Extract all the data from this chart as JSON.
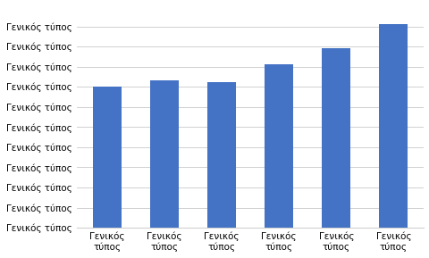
{
  "categories": [
    "Γενικός\nτύπος",
    "Γενικός\nτύπος",
    "Γενικός\nτύπος",
    "Γενικός\nτύπος",
    "Γενικός\nτύπος",
    "Γενικός\nτύπος"
  ],
  "values": [
    7.0,
    7.3,
    7.25,
    8.1,
    8.9,
    10.1
  ],
  "bar_color": "#4472C4",
  "ytick_label": "Γενικός τύπος",
  "num_yticks": 11,
  "ylim": [
    0,
    11
  ],
  "grid_color": "#d0d0d0",
  "bg_color": "#ffffff",
  "tick_fontsize": 7.5,
  "bar_width": 0.5,
  "figsize": [
    4.81,
    2.89
  ],
  "dpi": 100
}
